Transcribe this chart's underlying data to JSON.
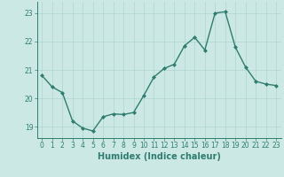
{
  "x": [
    0,
    1,
    2,
    3,
    4,
    5,
    6,
    7,
    8,
    9,
    10,
    11,
    12,
    13,
    14,
    15,
    16,
    17,
    18,
    19,
    20,
    21,
    22,
    23
  ],
  "y": [
    20.8,
    20.4,
    20.2,
    19.2,
    18.95,
    18.85,
    19.35,
    19.45,
    19.43,
    19.5,
    20.1,
    20.75,
    21.05,
    21.2,
    21.85,
    22.15,
    21.7,
    23.0,
    23.05,
    21.8,
    21.1,
    20.6,
    20.5,
    20.45
  ],
  "line_color": "#2e7d6e",
  "marker": "D",
  "markersize": 2.0,
  "linewidth": 1.0,
  "background_color": "#cce8e5",
  "grid_color": "#b0d4d0",
  "axis_color": "#2e7d6e",
  "tick_color": "#2e7d6e",
  "xlabel": "Humidex (Indice chaleur)",
  "xlim": [
    -0.5,
    23.5
  ],
  "ylim": [
    18.6,
    23.4
  ],
  "yticks": [
    19,
    20,
    21,
    22,
    23
  ],
  "xticks": [
    0,
    1,
    2,
    3,
    4,
    5,
    6,
    7,
    8,
    9,
    10,
    11,
    12,
    13,
    14,
    15,
    16,
    17,
    18,
    19,
    20,
    21,
    22,
    23
  ],
  "tick_fontsize": 5.5,
  "xlabel_fontsize": 7.0,
  "xlabel_fontweight": "bold"
}
